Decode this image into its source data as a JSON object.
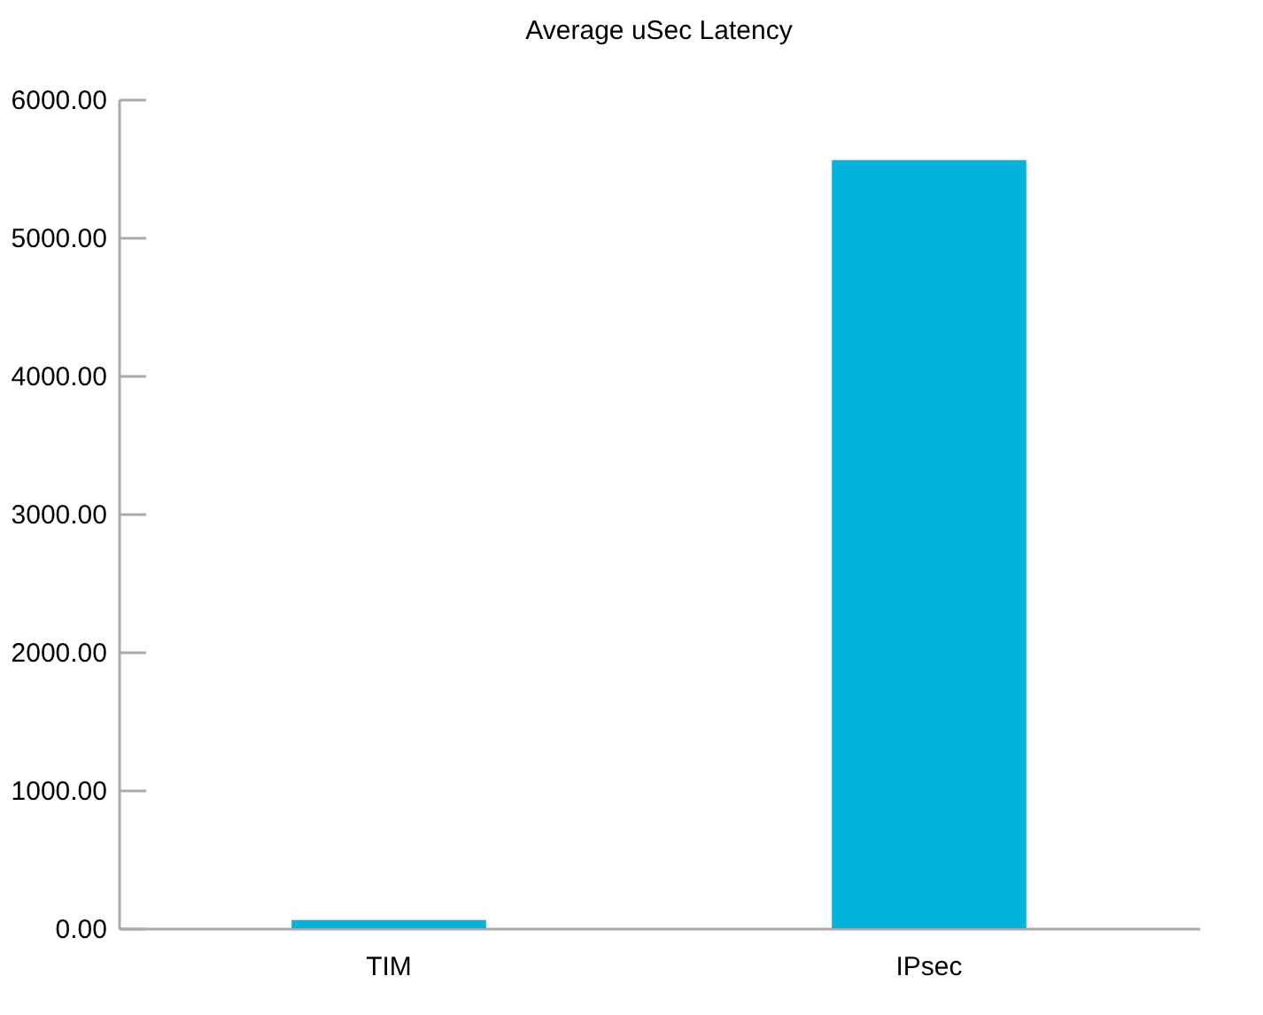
{
  "chart_data": {
    "type": "bar",
    "title": "Average uSec Latency",
    "categories": [
      "TIM",
      "IPsec"
    ],
    "values": [
      60,
      5560
    ],
    "color": "#00b4dc",
    "ylim": [
      0,
      6000
    ],
    "yticks": [
      {
        "value": 0,
        "label": "0.00"
      },
      {
        "value": 1000,
        "label": "1000.00"
      },
      {
        "value": 2000,
        "label": "2000.00"
      },
      {
        "value": 3000,
        "label": "3000.00"
      },
      {
        "value": 4000,
        "label": "4000.00"
      },
      {
        "value": 5000,
        "label": "5000.00"
      },
      {
        "value": 6000,
        "label": "6000.00"
      }
    ],
    "grid": false
  }
}
